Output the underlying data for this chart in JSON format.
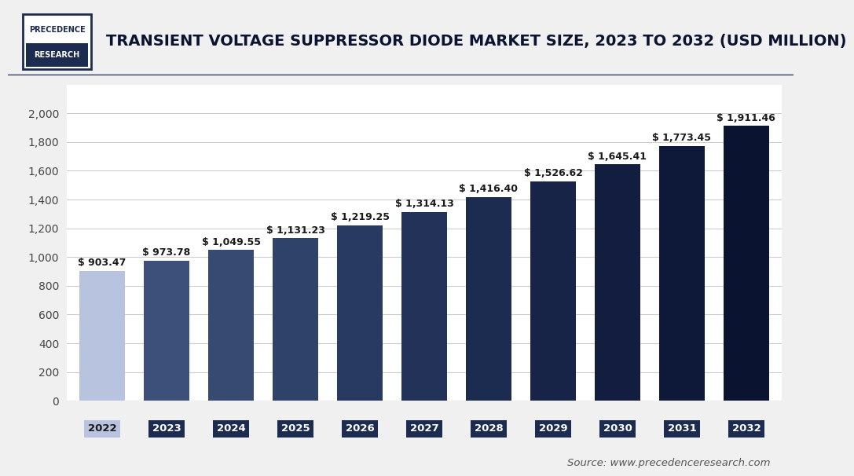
{
  "years": [
    "2022",
    "2023",
    "2024",
    "2025",
    "2026",
    "2027",
    "2028",
    "2029",
    "2030",
    "2031",
    "2032"
  ],
  "values": [
    903.47,
    973.78,
    1049.55,
    1131.23,
    1219.25,
    1314.13,
    1416.4,
    1526.62,
    1645.41,
    1773.45,
    1911.46
  ],
  "bar_colors": [
    "#b8c3e0",
    "#3d507a",
    "#364a72",
    "#2f4269",
    "#283a61",
    "#223259",
    "#1c2b50",
    "#172448",
    "#121d40",
    "#0e1838",
    "#0a1330"
  ],
  "tick_label_bg_2022": "#b8c3e0",
  "tick_label_bg_others": "#1c2b50",
  "title": "TRANSIENT VOLTAGE SUPPRESSOR DIODE MARKET SIZE, 2023 TO 2032 (USD MILLION)",
  "ylim": [
    0,
    2200
  ],
  "yticks": [
    0,
    200,
    400,
    600,
    800,
    1000,
    1200,
    1400,
    1600,
    1800,
    2000
  ],
  "source_text": "Source: www.precedenceresearch.com",
  "background_color": "#f0f0f0",
  "plot_bg_color": "#ffffff",
  "label_fontsize": 9,
  "title_fontsize": 14,
  "header_line_color": "#1c2b50",
  "logo_border_color": "#1c2b50",
  "logo_bg_color": "#1c2b50"
}
